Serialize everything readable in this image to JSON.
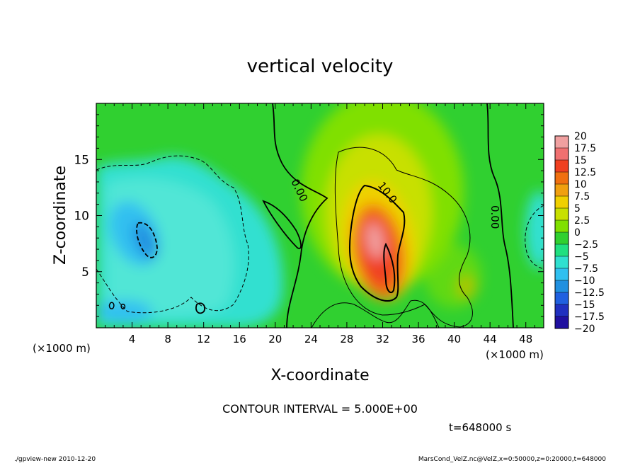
{
  "chart_data": {
    "type": "heatmap",
    "title": "vertical velocity",
    "xlabel": "X-coordinate",
    "ylabel": "Z-coordinate",
    "x_unit_left": "(×1000 m)",
    "x_unit_right": "(×1000 m)",
    "xlim": [
      0,
      50
    ],
    "ylim": [
      0,
      20
    ],
    "x_ticks": [
      4,
      8,
      12,
      16,
      20,
      24,
      28,
      32,
      36,
      40,
      44,
      48
    ],
    "y_ticks": [
      5,
      10,
      15
    ],
    "colorbar": {
      "labels": [
        "20",
        "17.5",
        "15",
        "12.5",
        "10",
        "7.5",
        "5",
        "2.5",
        "0",
        "−2.5",
        "−5",
        "−7.5",
        "−10",
        "−12.5",
        "−15",
        "−17.5",
        "−20"
      ],
      "colors": [
        "#f0a0a0",
        "#f07070",
        "#f04020",
        "#f07010",
        "#f0a010",
        "#f0d000",
        "#c8e000",
        "#80e000",
        "#30d030",
        "#20e080",
        "#30e0d0",
        "#30c0f0",
        "#2090e0",
        "#2060e0",
        "#2030c0",
        "#2010a0",
        "#7020c0"
      ]
    },
    "contour_labels": [
      "0.00",
      "10.0",
      "0.00"
    ],
    "contour_interval": "CONTOUR INTERVAL = 5.000E+00",
    "time_label": "t=648000 s",
    "grid": false
  },
  "footer": {
    "left": "./gpview-new  2010-12-20",
    "right": "MarsCond_VelZ.nc@VelZ,x=0:50000,z=0:20000,t=648000"
  }
}
